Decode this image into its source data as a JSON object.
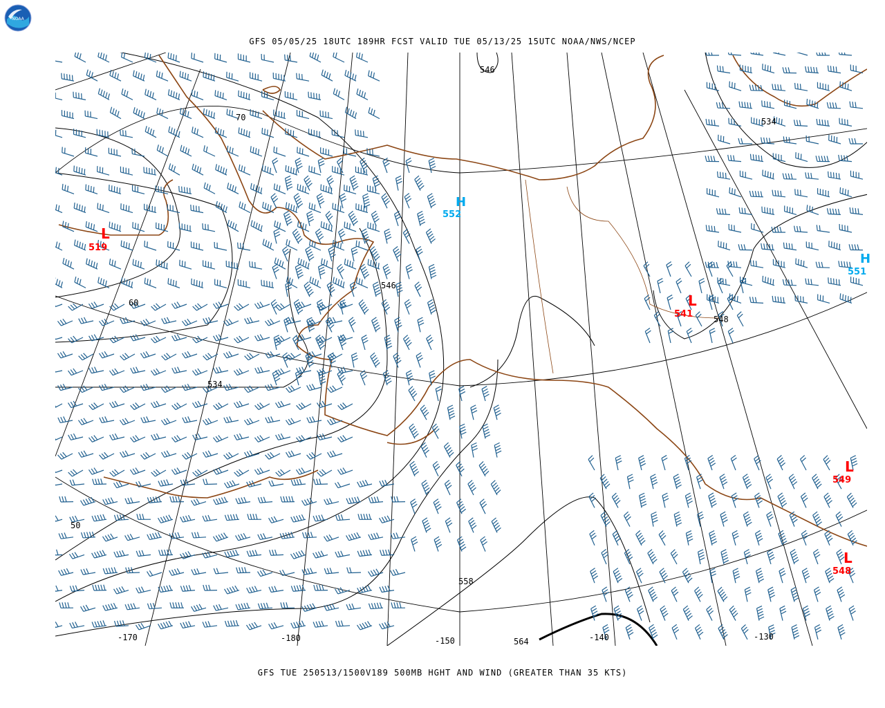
{
  "header": {
    "title": "GFS 05/05/25 18UTC 189HR FCST VALID TUE 05/13/25 15UTC NOAA/NWS/NCEP"
  },
  "footer": {
    "caption": "GFS TUE 250513/1500V189 500MB HGHT AND WIND (GREATER THAN 35 KTS)"
  },
  "logo": {
    "text": "NOAA",
    "icon": "noaa-logo-icon"
  },
  "colors": {
    "coast": "#8B4513",
    "contour": "#000000",
    "barbs": "#1f5f8f",
    "low": "#ff0000",
    "high": "#00aaee"
  },
  "lat_labels": [
    "70",
    "60",
    "50"
  ],
  "lon_labels": [
    "-170",
    "-180",
    "-150",
    "-140",
    "-130"
  ],
  "contour_labels": [
    "546",
    "534",
    "546",
    "534",
    "548",
    "558",
    "564"
  ],
  "centers": [
    {
      "kind": "L",
      "value": "519"
    },
    {
      "kind": "H",
      "value": "552"
    },
    {
      "kind": "L",
      "value": "541"
    },
    {
      "kind": "H",
      "value": "551"
    },
    {
      "kind": "L",
      "value": "549"
    },
    {
      "kind": "L",
      "value": "548"
    }
  ]
}
